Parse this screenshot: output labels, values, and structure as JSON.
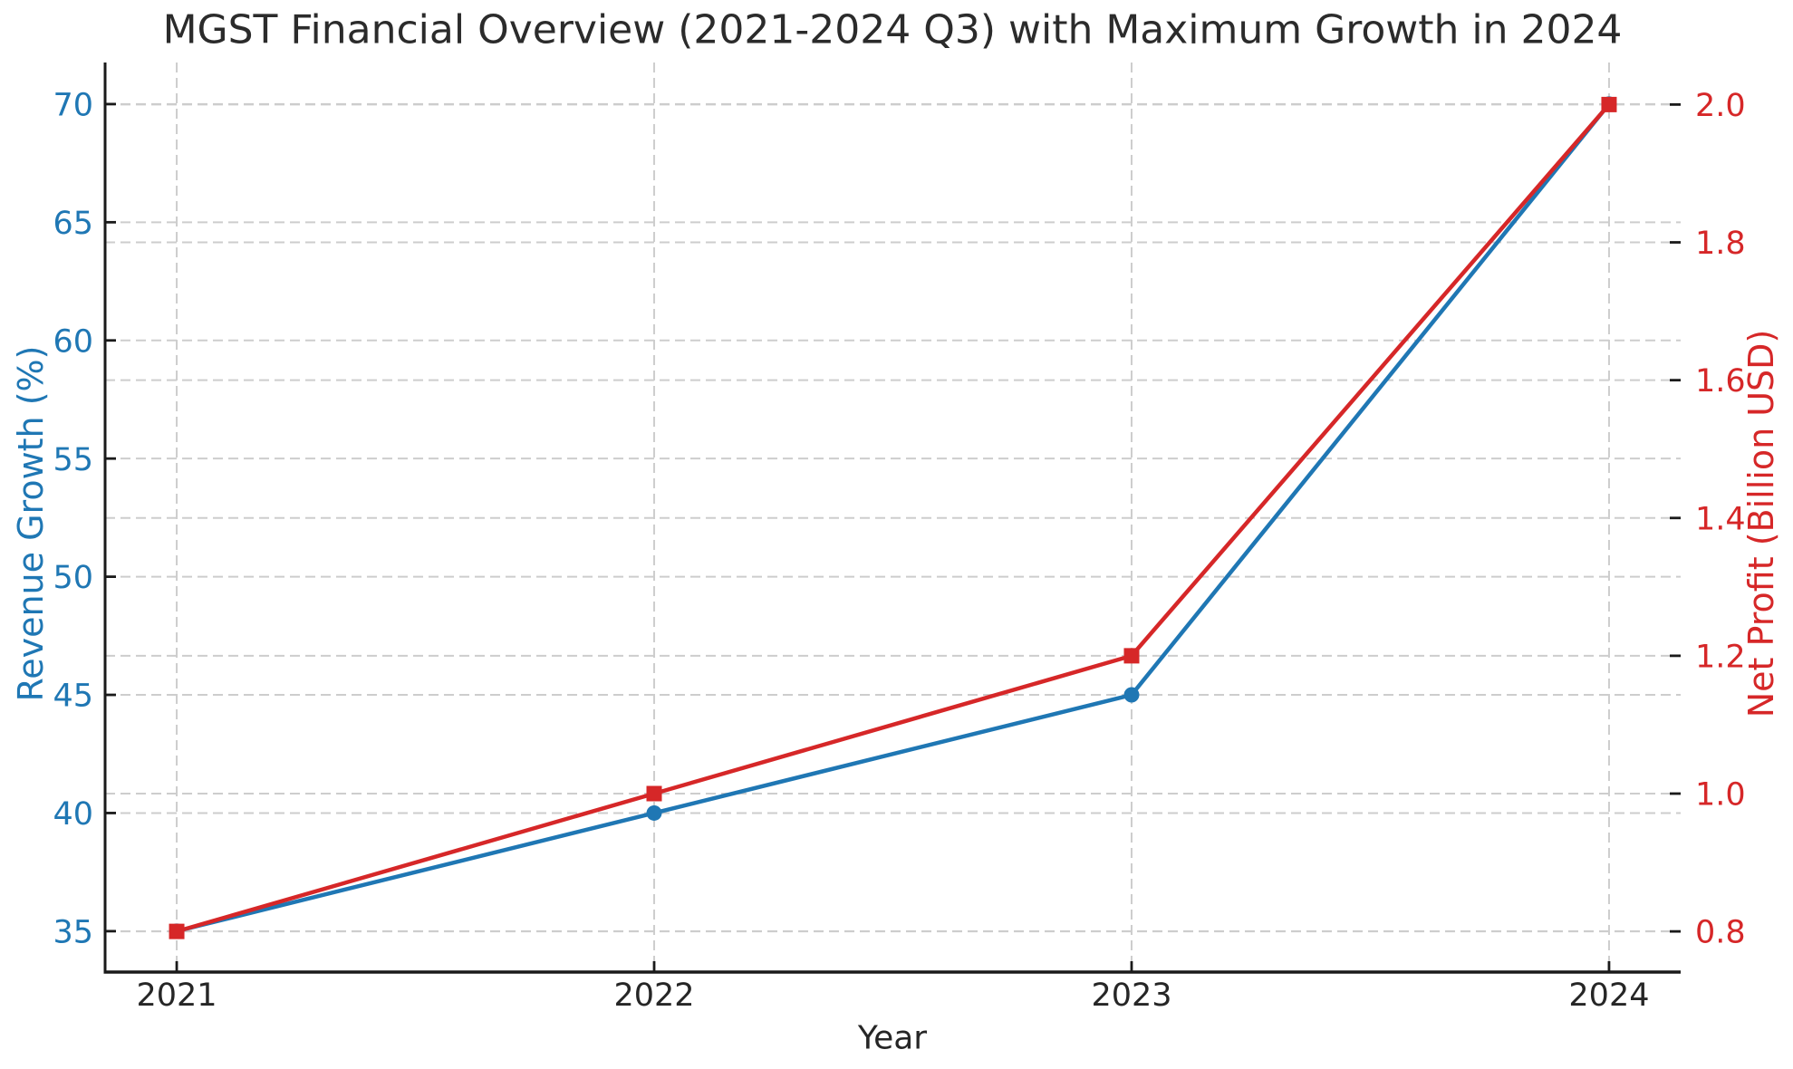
{
  "chart_data": {
    "type": "line",
    "title": "MGST Financial Overview (2021-2024 Q3) with Maximum Growth in 2024",
    "xlabel": "Year",
    "x": [
      2021,
      2022,
      2023,
      2024
    ],
    "x_tick_labels": [
      "2021",
      "2022",
      "2023",
      "2024"
    ],
    "xlim": [
      2020.85,
      2024.15
    ],
    "series": [
      {
        "name": "Revenue Growth (%)",
        "axis": "left",
        "color": "#1f77b4",
        "marker": "circle",
        "values": [
          35,
          40,
          45,
          70
        ]
      },
      {
        "name": "Net Profit (Billion USD)",
        "axis": "right",
        "color": "#d62728",
        "marker": "square",
        "values": [
          0.8,
          1.0,
          1.2,
          2.0
        ]
      }
    ],
    "left_axis": {
      "label": "Revenue Growth (%)",
      "color": "#1f77b4",
      "ticks": [
        35,
        40,
        45,
        50,
        55,
        60,
        65,
        70
      ],
      "tick_labels": [
        "35",
        "40",
        "45",
        "50",
        "55",
        "60",
        "65",
        "70"
      ],
      "range": [
        33.27,
        71.76
      ]
    },
    "right_axis": {
      "label": "Net Profit (Billion USD)",
      "color": "#d62728",
      "ticks": [
        0.8,
        1.0,
        1.2,
        1.4,
        1.6,
        1.8,
        2.0
      ],
      "tick_labels": [
        "0.8",
        "1.0",
        "1.2",
        "1.4",
        "1.6",
        "1.8",
        "2.0"
      ],
      "range": [
        0.741,
        2.061
      ]
    },
    "grid": true,
    "grid_color": "#cdcdcd",
    "legend": "none",
    "spine_color": "#1a1a1a",
    "tick_label_color": "#262626"
  }
}
